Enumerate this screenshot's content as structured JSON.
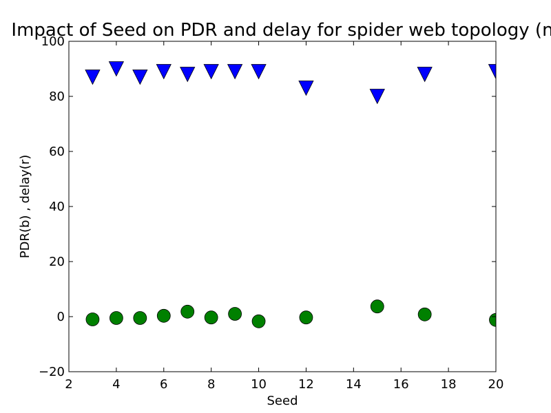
{
  "chart_data": {
    "type": "scatter",
    "title": "Impact of Seed on PDR and delay for spider web topology (n",
    "xlabel": "Seed",
    "ylabel": "PDR(b) , delay(r)",
    "xlim": [
      2,
      20
    ],
    "ylim": [
      -20,
      100
    ],
    "xticks": [
      2,
      4,
      6,
      8,
      10,
      12,
      14,
      16,
      18,
      20
    ],
    "yticks": [
      -20,
      0,
      20,
      40,
      60,
      80,
      100
    ],
    "grid": false,
    "series": [
      {
        "marker": "triangle-down",
        "color": "#0000ff",
        "x": [
          3,
          4,
          5,
          6,
          7,
          8,
          9,
          10,
          12,
          15,
          17,
          20
        ],
        "y": [
          87,
          90,
          87,
          89,
          88,
          89,
          89,
          89,
          83,
          80,
          88,
          89
        ]
      },
      {
        "marker": "circle",
        "color": "#008000",
        "x": [
          3,
          4,
          5,
          6,
          7,
          8,
          9,
          10,
          12,
          15,
          17,
          20
        ],
        "y": [
          -1,
          -0.5,
          -0.5,
          0.3,
          1.8,
          -0.3,
          1.0,
          -1.7,
          -0.3,
          3.7,
          0.8,
          -1.2
        ]
      }
    ]
  }
}
